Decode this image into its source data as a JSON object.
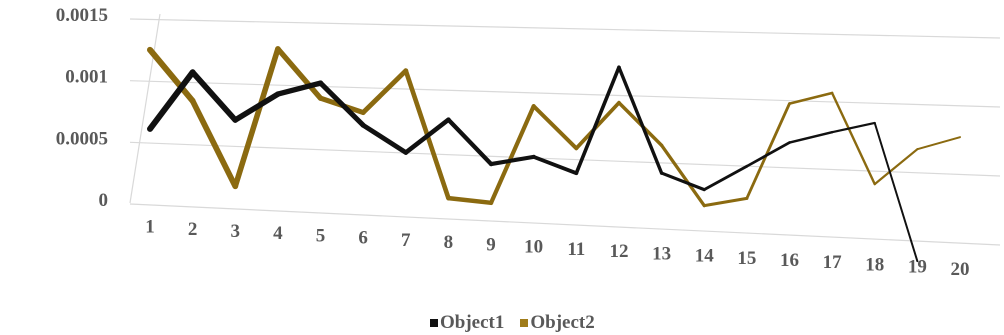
{
  "chart_data": {
    "type": "line",
    "categories": [
      "1",
      "2",
      "3",
      "4",
      "5",
      "6",
      "7",
      "8",
      "9",
      "10",
      "11",
      "12",
      "13",
      "14",
      "15",
      "16",
      "17",
      "18",
      "19",
      "20"
    ],
    "yticks": [
      "0",
      "0.0005",
      "0.001",
      "0.0015"
    ],
    "ylim": [
      0,
      0.0015
    ],
    "grid": true,
    "legend": "bottom",
    "series": [
      {
        "name": "Object1",
        "color": "#111111",
        "values": [
          0.00058,
          0.00105,
          0.00068,
          0.0009,
          0.001,
          0.00068,
          0.00048,
          0.00075,
          0.00042,
          0.00049,
          0.00038,
          0.0012,
          0.00041,
          0.0003,
          0.00049,
          0.00068,
          0.00077,
          0.00085,
          -0.00015,
          null
        ]
      },
      {
        "name": "Object2",
        "color": "#8B6A10",
        "values": [
          0.00122,
          0.00082,
          0.00015,
          0.00126,
          0.00088,
          0.00078,
          0.00112,
          0.00014,
          0.00012,
          0.00088,
          0.00057,
          0.00093,
          0.00062,
          0.00018,
          0.00025,
          0.00097,
          0.00106,
          0.0004,
          0.00067,
          0.00077
        ]
      }
    ]
  }
}
